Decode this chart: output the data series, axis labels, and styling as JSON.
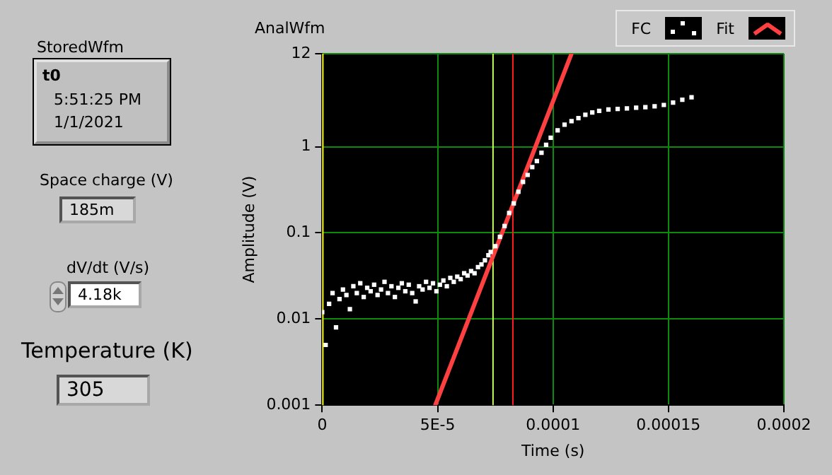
{
  "chart_data": [
    {
      "type": "other",
      "annotations": [
        "StoredWfm",
        "t0",
        "5:51:25 PM",
        "1/1/2021",
        "Space charge (V)",
        "185m",
        "dV/dt (V/s)",
        "4.18k",
        "Temperature (K)",
        "305"
      ]
    },
    {
      "type": "scatter",
      "title": "AnalWfm",
      "xlabel": "Time (s)",
      "ylabel": "Amplitude (V)",
      "log": "y",
      "grid": true,
      "legend": "top right",
      "xlim": [
        0,
        0.0002
      ],
      "xticks": [
        0,
        {
          "value": 5e-05,
          "label": "5E-5"
        },
        0.0001,
        0.00015,
        0.0002
      ],
      "ylim": [
        0.001,
        12
      ],
      "yticks": [
        0.001,
        0.01,
        0.1,
        1,
        12
      ],
      "ref_lines": [
        {
          "axis": "x",
          "value": 0,
          "color": "#ffff00"
        },
        {
          "axis": "x",
          "value": 7.37e-05,
          "color": "#c8ff60"
        },
        {
          "axis": "x",
          "value": 8.23e-05,
          "color": "#ff2020"
        }
      ],
      "series": [
        {
          "name": "FC",
          "type": "scatter",
          "color": "#ffffff",
          "marker": "square",
          "x": [
            0,
            1.5e-06,
            3e-06,
            4.5e-06,
            6e-06,
            7.5e-06,
            9e-06,
            1.05e-05,
            1.2e-05,
            1.35e-05,
            1.5e-05,
            1.65e-05,
            1.8e-05,
            1.95e-05,
            2.1e-05,
            2.25e-05,
            2.4e-05,
            2.55e-05,
            2.7e-05,
            2.85e-05,
            3e-05,
            3.15e-05,
            3.3e-05,
            3.45e-05,
            3.6e-05,
            3.75e-05,
            3.9e-05,
            4.05e-05,
            4.2e-05,
            4.35e-05,
            4.5e-05,
            4.65e-05,
            4.8e-05,
            4.95e-05,
            5.1e-05,
            5.25e-05,
            5.4e-05,
            5.55e-05,
            5.7e-05,
            5.85e-05,
            6e-05,
            6.15e-05,
            6.3e-05,
            6.45e-05,
            6.6e-05,
            6.75e-05,
            6.9e-05,
            7.05e-05,
            7.2e-05,
            7.3e-05,
            7.5e-05,
            7.7e-05,
            7.9e-05,
            8.1e-05,
            8.3e-05,
            8.5e-05,
            8.7e-05,
            8.9e-05,
            9.1e-05,
            9.3e-05,
            9.5e-05,
            9.7e-05,
            9.9e-05,
            0.000102,
            0.000105,
            0.000108,
            0.000111,
            0.000114,
            0.000117,
            0.00012,
            0.000124,
            0.000128,
            0.000132,
            0.000136,
            0.00014,
            0.000144,
            0.000148,
            0.000152,
            0.000156,
            0.00016
          ],
          "values": [
            0.012,
            0.005,
            0.015,
            0.02,
            0.008,
            0.017,
            0.022,
            0.019,
            0.013,
            0.024,
            0.02,
            0.026,
            0.018,
            0.023,
            0.021,
            0.025,
            0.019,
            0.022,
            0.027,
            0.02,
            0.024,
            0.018,
            0.023,
            0.026,
            0.021,
            0.025,
            0.02,
            0.016,
            0.024,
            0.022,
            0.027,
            0.023,
            0.026,
            0.021,
            0.025,
            0.028,
            0.024,
            0.03,
            0.027,
            0.031,
            0.029,
            0.034,
            0.032,
            0.036,
            0.034,
            0.04,
            0.043,
            0.048,
            0.055,
            0.06,
            0.07,
            0.09,
            0.12,
            0.17,
            0.22,
            0.3,
            0.39,
            0.47,
            0.58,
            0.68,
            0.85,
            1.05,
            1.27,
            1.55,
            1.8,
            1.98,
            2.15,
            2.35,
            2.5,
            2.6,
            2.7,
            2.74,
            2.78,
            2.83,
            2.88,
            2.95,
            3.05,
            3.25,
            3.5,
            3.75
          ]
        },
        {
          "name": "Fit",
          "type": "line",
          "color": "#ff4040",
          "x": [
            4.9e-05,
            0.000108
          ],
          "values": [
            0.001,
            12
          ]
        }
      ]
    }
  ]
}
